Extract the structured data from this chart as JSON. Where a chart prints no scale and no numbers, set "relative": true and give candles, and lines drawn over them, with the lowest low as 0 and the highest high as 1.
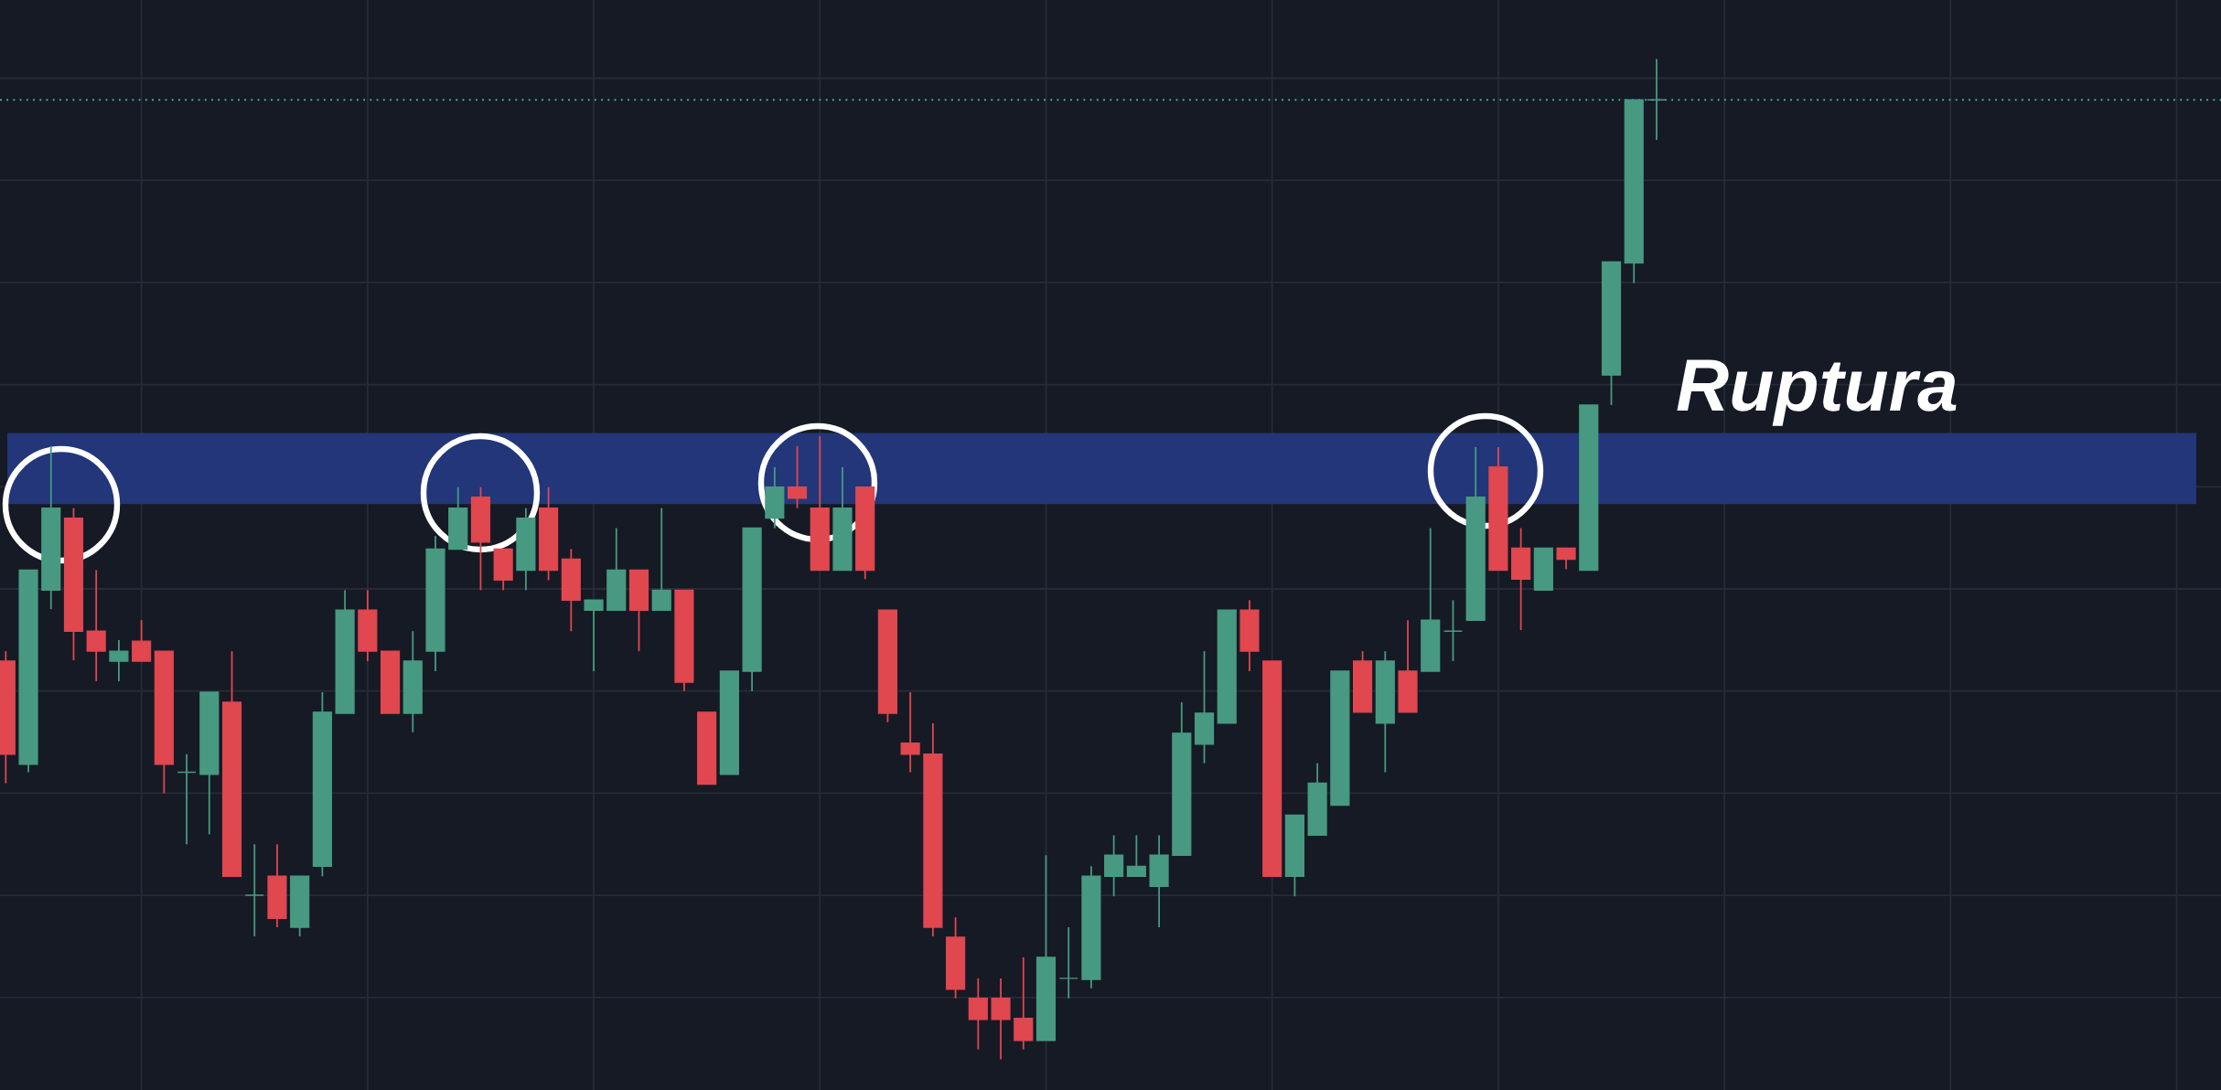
{
  "chart_data": {
    "type": "candlestick",
    "relative": true,
    "categories": [
      null,
      null,
      null,
      null,
      null,
      null,
      null,
      null,
      null,
      null,
      null,
      null,
      null,
      null,
      null,
      null,
      null,
      null,
      null,
      null,
      null,
      null,
      null,
      null,
      null,
      null,
      null,
      null,
      null,
      null,
      null,
      null,
      null,
      null,
      null,
      null,
      null,
      null,
      null,
      null,
      null,
      null,
      null,
      null,
      null,
      null,
      null,
      null,
      null,
      null,
      null,
      null,
      null,
      null,
      null,
      null,
      null,
      null,
      null,
      null,
      null,
      null,
      null,
      null,
      null,
      null,
      null,
      null,
      null,
      null,
      null,
      null,
      null,
      null
    ],
    "ohlc": [
      [
        0.398,
        0.408,
        0.276,
        0.305
      ],
      [
        0.295,
        0.489,
        0.287,
        0.489
      ],
      [
        0.469,
        0.613,
        0.45,
        0.551
      ],
      [
        0.541,
        0.551,
        0.399,
        0.428
      ],
      [
        0.428,
        0.489,
        0.378,
        0.408
      ],
      [
        0.398,
        0.419,
        0.378,
        0.408
      ],
      [
        0.418,
        0.439,
        0.398,
        0.398
      ],
      [
        0.408,
        0.408,
        0.266,
        0.295
      ],
      [
        0.287,
        0.305,
        0.215,
        0.287
      ],
      [
        0.285,
        0.367,
        0.225,
        0.367
      ],
      [
        0.357,
        0.408,
        0.183,
        0.183
      ],
      [
        0.164,
        0.215,
        0.123,
        0.164
      ],
      [
        0.183,
        0.215,
        0.132,
        0.141
      ],
      [
        0.132,
        0.183,
        0.123,
        0.183
      ],
      [
        0.193,
        0.367,
        0.183,
        0.347
      ],
      [
        0.346,
        0.469,
        0.346,
        0.449
      ],
      [
        0.449,
        0.469,
        0.398,
        0.408
      ],
      [
        0.408,
        0.408,
        0.346,
        0.346
      ],
      [
        0.346,
        0.428,
        0.327,
        0.398
      ],
      [
        0.408,
        0.523,
        0.388,
        0.51
      ],
      [
        0.51,
        0.572,
        0.51,
        0.551
      ],
      [
        0.562,
        0.572,
        0.469,
        0.517
      ],
      [
        0.51,
        0.51,
        0.469,
        0.479
      ],
      [
        0.489,
        0.551,
        0.469,
        0.541
      ],
      [
        0.551,
        0.572,
        0.479,
        0.489
      ],
      [
        0.5,
        0.51,
        0.428,
        0.459
      ],
      [
        0.449,
        0.459,
        0.388,
        0.459
      ],
      [
        0.449,
        0.531,
        0.449,
        0.489
      ],
      [
        0.489,
        0.489,
        0.408,
        0.449
      ],
      [
        0.449,
        0.551,
        0.449,
        0.469
      ],
      [
        0.469,
        0.469,
        0.368,
        0.377
      ],
      [
        0.347,
        0.347,
        0.275,
        0.275
      ],
      [
        0.285,
        0.388,
        0.285,
        0.388
      ],
      [
        0.388,
        0.531,
        0.368,
        0.531
      ],
      [
        0.541,
        0.592,
        0.531,
        0.572
      ],
      [
        0.572,
        0.613,
        0.551,
        0.561
      ],
      [
        0.551,
        0.623,
        0.489,
        0.489
      ],
      [
        0.489,
        0.592,
        0.489,
        0.551
      ],
      [
        0.572,
        0.572,
        0.48,
        0.489
      ],
      [
        0.449,
        0.449,
        0.337,
        0.346
      ],
      [
        0.316,
        0.367,
        0.287,
        0.305
      ],
      [
        0.305,
        0.336,
        0.123,
        0.132
      ],
      [
        0.122,
        0.142,
        0.061,
        0.07
      ],
      [
        0.061,
        0.081,
        0.01,
        0.04
      ],
      [
        0.061,
        0.081,
        0,
        0.04
      ],
      [
        0.041,
        0.102,
        0.01,
        0.019
      ],
      [
        0.019,
        0.204,
        0.019,
        0.102
      ],
      [
        0.081,
        0.132,
        0.061,
        0.081
      ],
      [
        0.08,
        0.193,
        0.071,
        0.183
      ],
      [
        0.183,
        0.224,
        0.163,
        0.204
      ],
      [
        0.183,
        0.224,
        0.183,
        0.193
      ],
      [
        0.173,
        0.224,
        0.132,
        0.204
      ],
      [
        0.204,
        0.357,
        0.204,
        0.326
      ],
      [
        0.315,
        0.408,
        0.296,
        0.346
      ],
      [
        0.336,
        0.449,
        0.336,
        0.449
      ],
      [
        0.449,
        0.459,
        0.388,
        0.408
      ],
      [
        0.398,
        0.398,
        0.183,
        0.183
      ],
      [
        0.183,
        0.244,
        0.163,
        0.244
      ],
      [
        0.224,
        0.296,
        0.224,
        0.276
      ],
      [
        0.254,
        0.388,
        0.254,
        0.388
      ],
      [
        0.398,
        0.408,
        0.347,
        0.347
      ],
      [
        0.336,
        0.408,
        0.287,
        0.398
      ],
      [
        0.388,
        0.439,
        0.347,
        0.347
      ],
      [
        0.388,
        0.531,
        0.388,
        0.439
      ],
      [
        0.428,
        0.459,
        0.398,
        0.428
      ],
      [
        0.439,
        0.612,
        0.439,
        0.562
      ],
      [
        0.592,
        0.612,
        0.489,
        0.489
      ],
      [
        0.511,
        0.531,
        0.429,
        0.48
      ],
      [
        0.469,
        0.511,
        0.469,
        0.511
      ],
      [
        0.511,
        0.511,
        0.49,
        0.5
      ],
      [
        0.489,
        0.654,
        0.489,
        0.654
      ],
      [
        0.684,
        0.797,
        0.654,
        0.797
      ],
      [
        0.796,
        0.959,
        0.776,
        0.959
      ],
      [
        0.959,
        1,
        0.919,
        0.959
      ]
    ],
    "colors": [
      "#e0474f",
      "#479a81",
      "#479a81",
      "#e0474f",
      "#e0474f",
      "#479a81",
      "#e0474f",
      "#e0474f",
      "#479a81",
      "#479a81",
      "#e0474f",
      "#479a81",
      "#e0474f",
      "#479a81",
      "#479a81",
      "#479a81",
      "#e0474f",
      "#e0474f",
      "#479a81",
      "#479a81",
      "#479a81",
      "#e0474f",
      "#e0474f",
      "#479a81",
      "#e0474f",
      "#e0474f",
      "#479a81",
      "#479a81",
      "#e0474f",
      "#479a81",
      "#e0474f",
      "#e0474f",
      "#479a81",
      "#479a81",
      "#479a81",
      "#e0474f",
      "#e0474f",
      "#479a81",
      "#e0474f",
      "#e0474f",
      "#e0474f",
      "#e0474f",
      "#e0474f",
      "#e0474f",
      "#e0474f",
      "#e0474f",
      "#479a81",
      "#479a81",
      "#479a81",
      "#479a81",
      "#479a81",
      "#479a81",
      "#479a81",
      "#479a81",
      "#479a81",
      "#e0474f",
      "#e0474f",
      "#479a81",
      "#479a81",
      "#479a81",
      "#e0474f",
      "#479a81",
      "#e0474f",
      "#479a81",
      "#479a81",
      "#479a81",
      "#e0474f",
      "#e0474f",
      "#479a81",
      "#e0474f",
      "#479a81",
      "#479a81",
      "#479a81",
      "#479a81"
    ],
    "grid": true,
    "ref_lines": [
      {
        "axis": "y",
        "value": 0.959,
        "color": "#3fb8a0",
        "line_style": "dotted"
      }
    ],
    "bands": [
      {
        "axis": "y",
        "from": 0.555,
        "to": 0.626,
        "color": "#23367a"
      }
    ],
    "annotations": [
      "Ruptura"
    ]
  }
}
